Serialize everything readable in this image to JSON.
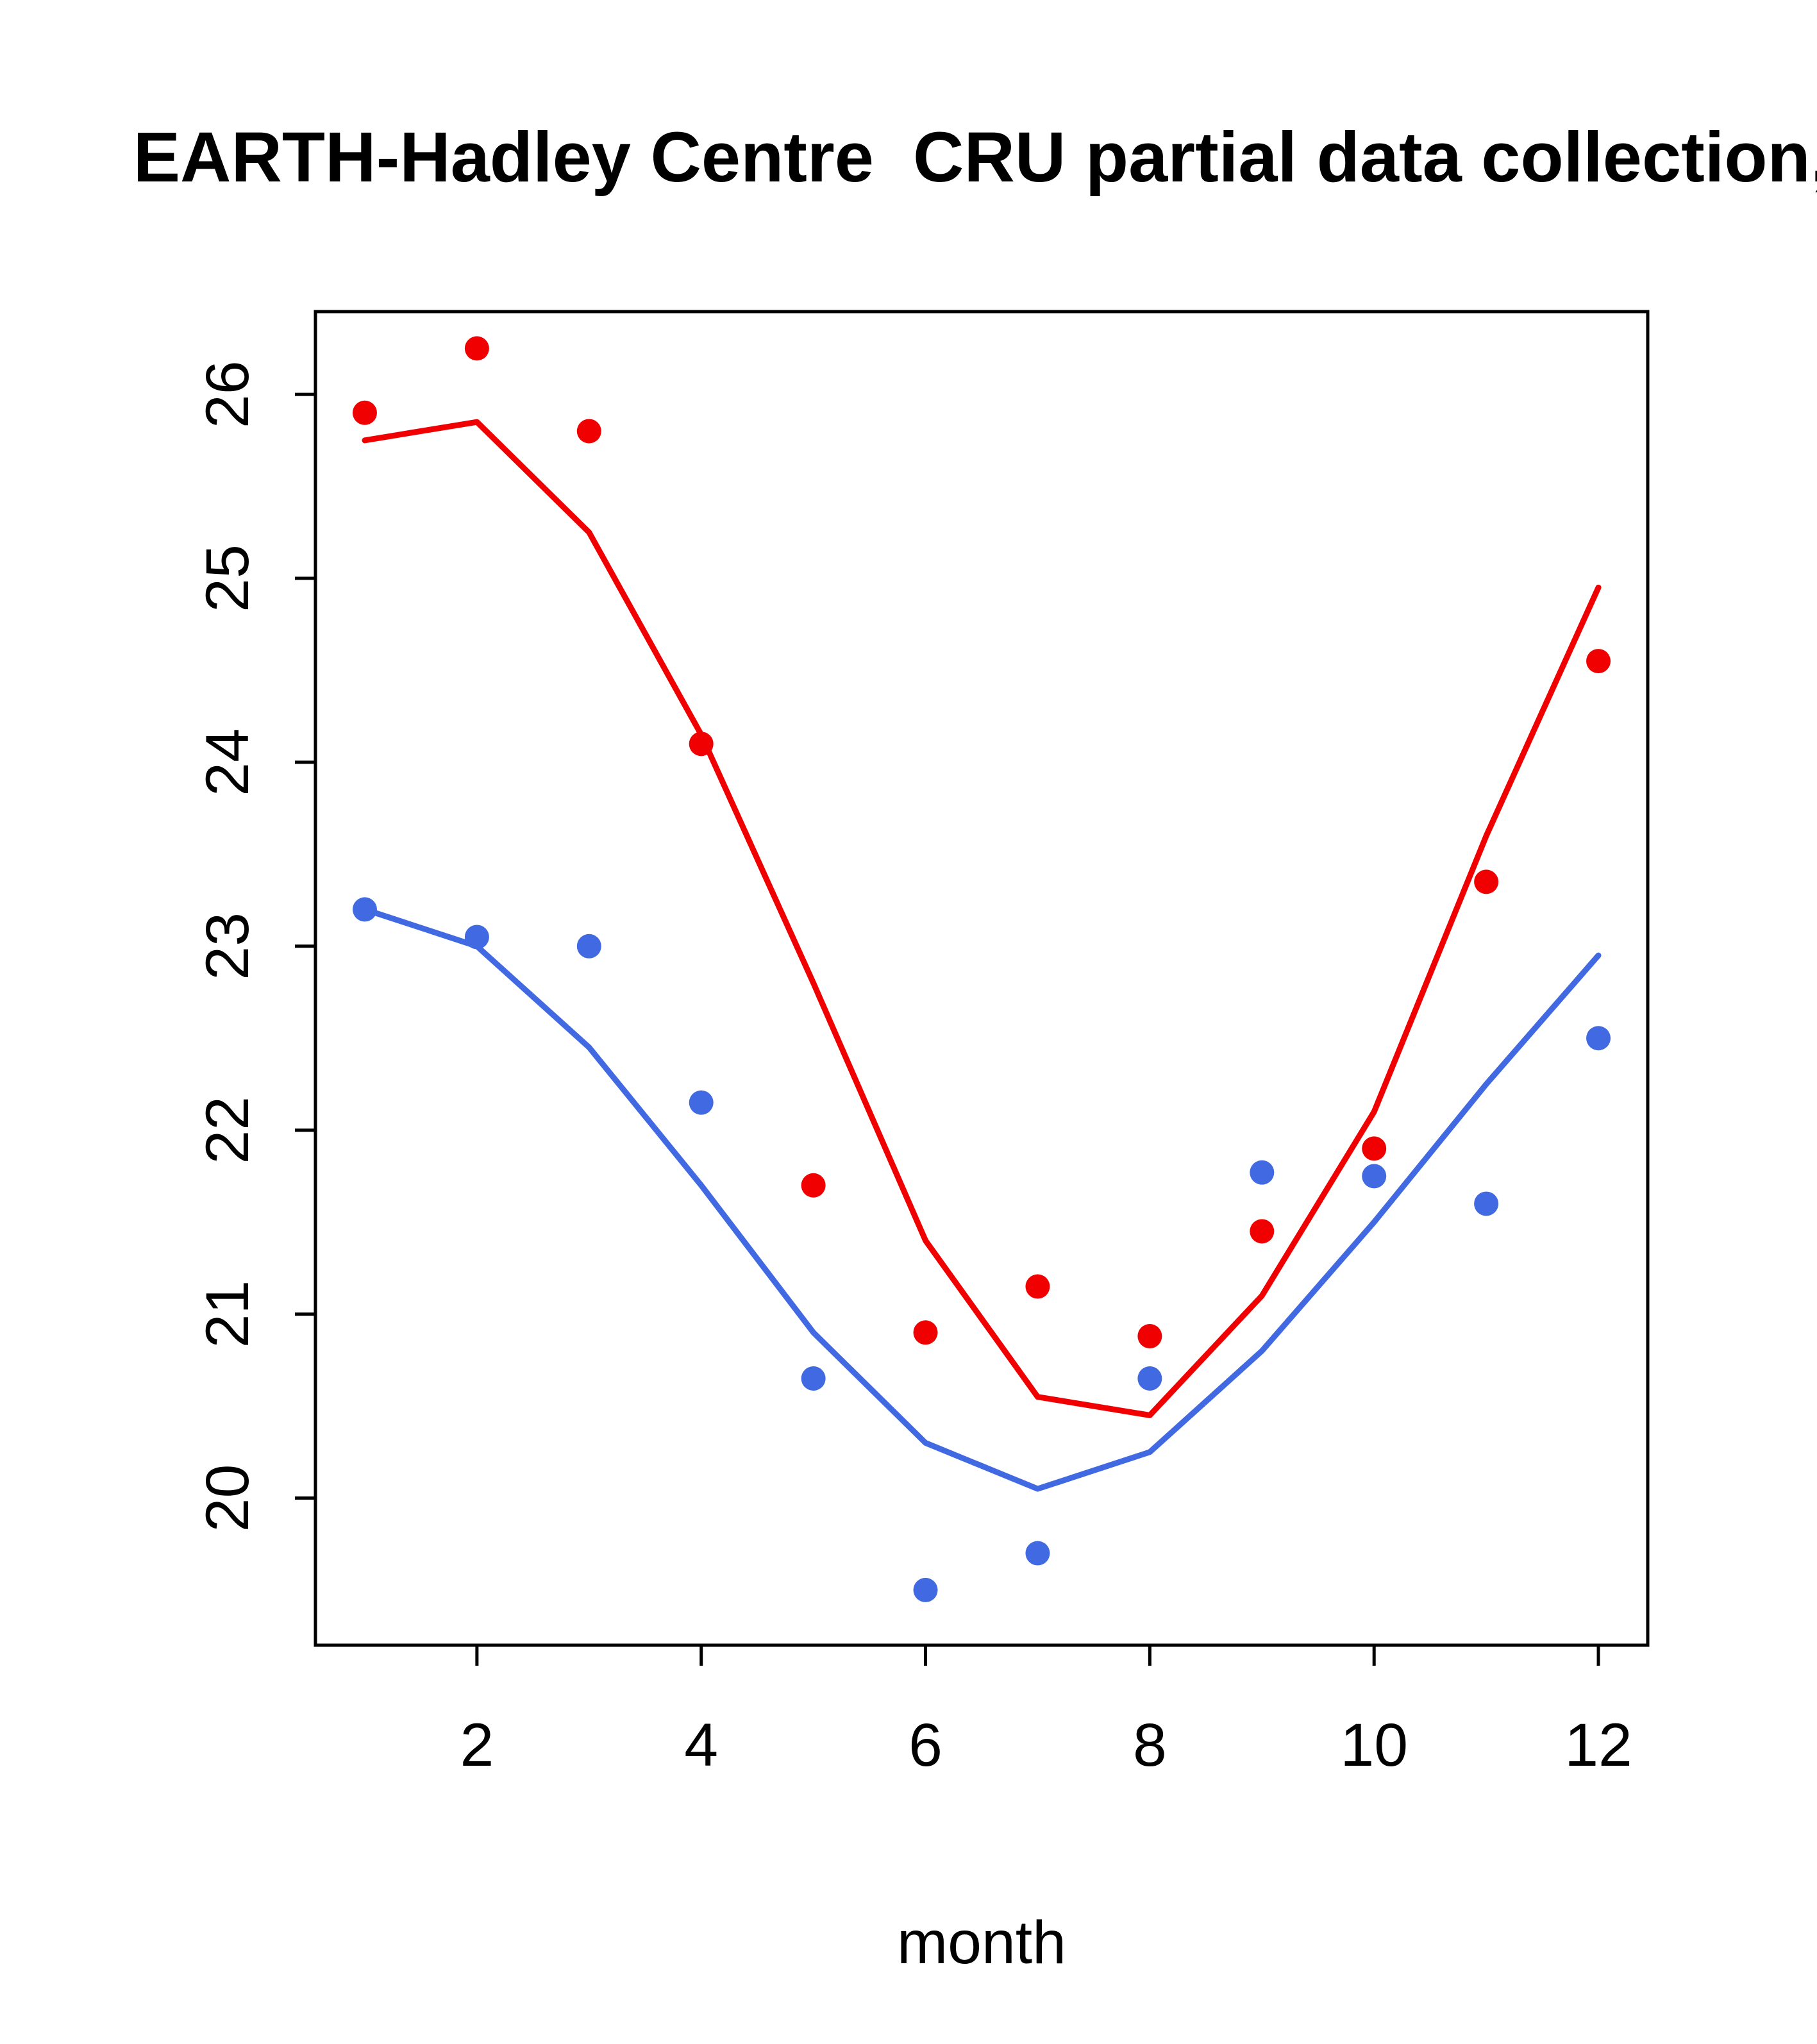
{
  "title": "EARTH-Hadley Centre  CRU partial data collection,",
  "chart_data": {
    "type": "line",
    "title": "EARTH-Hadley Centre  CRU partial data collection,",
    "xlabel": "month",
    "ylabel": "",
    "x": [
      1,
      2,
      3,
      4,
      5,
      6,
      7,
      8,
      9,
      10,
      11,
      12
    ],
    "xticks": [
      2,
      4,
      6,
      8,
      10,
      12
    ],
    "yticks": [
      20,
      21,
      22,
      23,
      24,
      25,
      26
    ],
    "xlim": [
      0.56,
      12.44
    ],
    "ylim": [
      19.2,
      26.45
    ],
    "grid": false,
    "legend": "none",
    "colors": {
      "red": "#f00000",
      "blue": "#4169e1"
    },
    "series": [
      {
        "name": "red-observations-points",
        "kind": "points",
        "color": "#f00000",
        "values": [
          25.9,
          26.25,
          25.8,
          24.1,
          21.7,
          20.9,
          21.15,
          20.88,
          21.45,
          21.9,
          23.35,
          24.55
        ]
      },
      {
        "name": "red-model-line",
        "kind": "line",
        "color": "#f00000",
        "values": [
          25.75,
          25.85,
          25.25,
          24.15,
          22.8,
          21.4,
          20.55,
          20.45,
          21.1,
          22.1,
          23.6,
          24.95
        ]
      },
      {
        "name": "blue-observations-points",
        "kind": "points",
        "color": "#4169e1",
        "values": [
          23.2,
          23.05,
          23.0,
          22.15,
          20.65,
          19.5,
          19.7,
          20.65,
          21.77,
          21.75,
          21.6,
          22.5
        ]
      },
      {
        "name": "blue-model-line",
        "kind": "line",
        "color": "#4169e1",
        "values": [
          23.2,
          23.0,
          22.45,
          21.7,
          20.9,
          20.3,
          20.05,
          20.25,
          20.8,
          21.5,
          22.25,
          22.95
        ]
      }
    ]
  }
}
